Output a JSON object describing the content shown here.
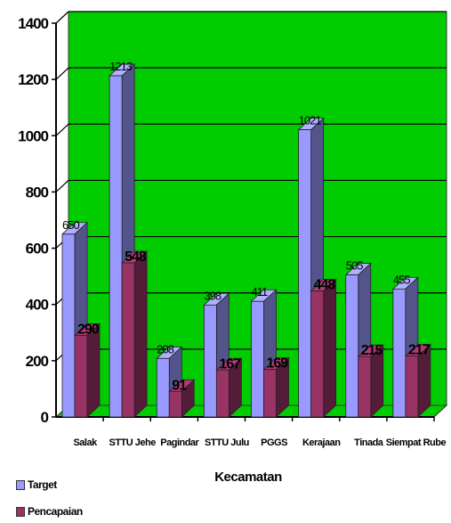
{
  "chart_data": {
    "type": "bar",
    "categories": [
      "Salak",
      "STTU Jehe",
      "Pagindar",
      "STTU Julu",
      "PGGS",
      "Kerajaan",
      "Tinada",
      "Siempat Rube"
    ],
    "series": [
      {
        "name": "Target",
        "values": [
          650,
          1213,
          208,
          398,
          411,
          1021,
          505,
          455
        ],
        "color": "#9999ff"
      },
      {
        "name": "Pencapaian",
        "values": [
          290,
          548,
          91,
          167,
          169,
          448,
          215,
          217
        ],
        "color": "#993366"
      }
    ],
    "xlabel": "Kecamatan",
    "ylabel": "",
    "ylim": [
      0,
      1400
    ],
    "yticks": [
      0,
      200,
      400,
      600,
      800,
      1000,
      1200,
      1400
    ],
    "grid": true,
    "wall_color": "#00cc00",
    "legend_position": "bottom-left"
  }
}
